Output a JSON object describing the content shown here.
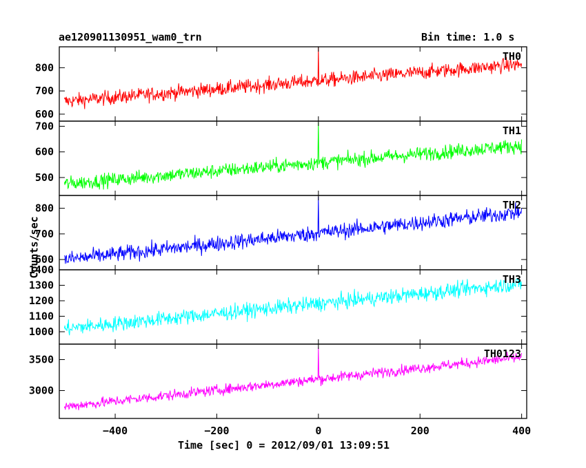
{
  "header": {
    "title": "ae120901130951_wam0_trn",
    "bin_time": "Bin time: 1.0 s"
  },
  "chart_data": {
    "type": "line",
    "xlabel": "Time [sec] 0 = 2012/09/01 13:09:51",
    "ylabel": "Counts/sec",
    "xlim": [
      -510,
      410
    ],
    "xticks": [
      -400,
      -200,
      0,
      200,
      400
    ],
    "grid": false,
    "panels": [
      {
        "name": "TH0",
        "color": "#ff0000",
        "ylim": [
          570,
          890
        ],
        "yticks": [
          600,
          700,
          800
        ],
        "trend_start": 655,
        "trend_end": 815,
        "noise": 22,
        "spike": 890
      },
      {
        "name": "TH1",
        "color": "#00ff00",
        "ylim": [
          430,
          720
        ],
        "yticks": [
          500,
          600,
          700
        ],
        "trend_start": 475,
        "trend_end": 625,
        "noise": 20,
        "spike": 715
      },
      {
        "name": "TH2",
        "color": "#0000ff",
        "ylim": [
          560,
          850
        ],
        "yticks": [
          600,
          700,
          800
        ],
        "trend_start": 600,
        "trend_end": 785,
        "noise": 22,
        "spike": 845
      },
      {
        "name": "TH3",
        "color": "#00ffff",
        "ylim": [
          920,
          1400
        ],
        "yticks": [
          1000,
          1100,
          1200,
          1300,
          1400
        ],
        "trend_start": 1020,
        "trend_end": 1310,
        "noise": 35,
        "spike": null
      },
      {
        "name": "TH0123",
        "color": "#ff00ff",
        "ylim": [
          2550,
          3750
        ],
        "yticks": [
          3000,
          3500
        ],
        "trend_start": 2740,
        "trend_end": 3540,
        "noise": 60,
        "spike": 3700
      }
    ]
  }
}
